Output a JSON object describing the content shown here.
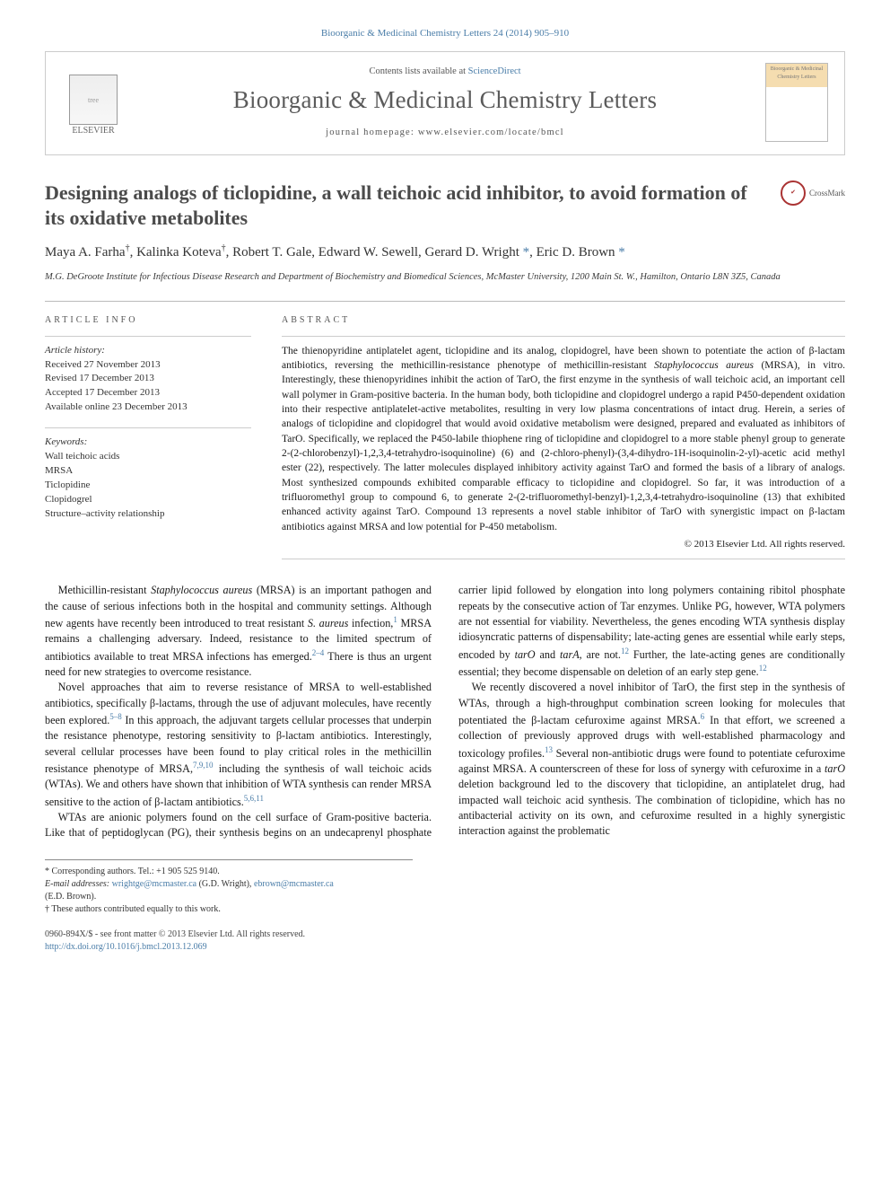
{
  "citation": "Bioorganic & Medicinal Chemistry Letters 24 (2014) 905–910",
  "header": {
    "contents_prefix": "Contents lists available at ",
    "contents_link": "ScienceDirect",
    "journal": "Bioorganic & Medicinal Chemistry Letters",
    "homepage_prefix": "journal homepage: ",
    "homepage_url": "www.elsevier.com/locate/bmcl",
    "publisher_label": "ELSEVIER",
    "cover_label": "Bioorganic & Medicinal Chemistry Letters"
  },
  "crossmark_label": "CrossMark",
  "title": "Designing analogs of ticlopidine, a wall teichoic acid inhibitor, to avoid formation of its oxidative metabolites",
  "authors_html": "Maya A. Farha<sup>†</sup>, Kalinka Koteva<sup>†</sup>, Robert T. Gale, Edward W. Sewell, Gerard D. Wright<sup>*</sup>, Eric D. Brown<sup>*</sup>",
  "affiliation": "M.G. DeGroote Institute for Infectious Disease Research and Department of Biochemistry and Biomedical Sciences, McMaster University, 1200 Main St. W., Hamilton, Ontario L8N 3Z5, Canada",
  "info": {
    "heading": "ARTICLE INFO",
    "history_label": "Article history:",
    "received": "Received 27 November 2013",
    "revised": "Revised 17 December 2013",
    "accepted": "Accepted 17 December 2013",
    "online": "Available online 23 December 2013",
    "keywords_label": "Keywords:",
    "keywords": [
      "Wall teichoic acids",
      "MRSA",
      "Ticlopidine",
      "Clopidogrel",
      "Structure–activity relationship"
    ]
  },
  "abstract": {
    "heading": "ABSTRACT",
    "text": "The thienopyridine antiplatelet agent, ticlopidine and its analog, clopidogrel, have been shown to potentiate the action of β-lactam antibiotics, reversing the methicillin-resistance phenotype of methicillin-resistant Staphylococcus aureus (MRSA), in vitro. Interestingly, these thienopyridines inhibit the action of TarO, the first enzyme in the synthesis of wall teichoic acid, an important cell wall polymer in Gram-positive bacteria. In the human body, both ticlopidine and clopidogrel undergo a rapid P450-dependent oxidation into their respective antiplatelet-active metabolites, resulting in very low plasma concentrations of intact drug. Herein, a series of analogs of ticlopidine and clopidogrel that would avoid oxidative metabolism were designed, prepared and evaluated as inhibitors of TarO. Specifically, we replaced the P450-labile thiophene ring of ticlopidine and clopidogrel to a more stable phenyl group to generate 2-(2-chlorobenzyl)-1,2,3,4-tetrahydro-isoquinoline) (6) and (2-chloro-phenyl)-(3,4-dihydro-1H-isoquinolin-2-yl)-acetic acid methyl ester (22), respectively. The latter molecules displayed inhibitory activity against TarO and formed the basis of a library of analogs. Most synthesized compounds exhibited comparable efficacy to ticlopidine and clopidogrel. So far, it was introduction of a trifluoromethyl group to compound 6, to generate 2-(2-trifluoromethyl-benzyl)-1,2,3,4-tetrahydro-isoquinoline (13) that exhibited enhanced activity against TarO. Compound 13 represents a novel stable inhibitor of TarO with synergistic impact on β-lactam antibiotics against MRSA and low potential for P-450 metabolism.",
    "copyright": "© 2013 Elsevier Ltd. All rights reserved."
  },
  "body": {
    "p1": "Methicillin-resistant Staphylococcus aureus (MRSA) is an important pathogen and the cause of serious infections both in the hospital and community settings. Although new agents have recently been introduced to treat resistant S. aureus infection,¹ MRSA remains a challenging adversary. Indeed, resistance to the limited spectrum of antibiotics available to treat MRSA infections has emerged.²⁻⁴ There is thus an urgent need for new strategies to overcome resistance.",
    "p2": "Novel approaches that aim to reverse resistance of MRSA to well-established antibiotics, specifically β-lactams, through the use of adjuvant molecules, have recently been explored.⁵⁻⁸ In this approach, the adjuvant targets cellular processes that underpin the resistance phenotype, restoring sensitivity to β-lactam antibiotics. Interestingly, several cellular processes have been found to play critical roles in the methicillin resistance phenotype of MRSA,⁷,⁹,¹⁰ including the synthesis of wall teichoic acids (WTAs). We and others have shown that inhibition of WTA synthesis can render MRSA sensitive to the action of β-lactam antibiotics.⁵,⁶,¹¹",
    "p3": "WTAs are anionic polymers found on the cell surface of Gram-positive bacteria. Like that of peptidoglycan (PG), their synthesis begins on an undecaprenyl phosphate carrier lipid followed by elongation into long polymers containing ribitol phosphate repeats by the consecutive action of Tar enzymes. Unlike PG, however, WTA polymers are not essential for viability. Nevertheless, the genes encoding WTA synthesis display idiosyncratic patterns of dispensability; late-acting genes are essential while early steps, encoded by tarO and tarA, are not.¹² Further, the late-acting genes are conditionally essential; they become dispensable on deletion of an early step gene.¹²",
    "p4": "We recently discovered a novel inhibitor of TarO, the first step in the synthesis of WTAs, through a high-throughput combination screen looking for molecules that potentiated the β-lactam cefuroxime against MRSA.⁶ In that effort, we screened a collection of previously approved drugs with well-established pharmacology and toxicology profiles.¹³ Several non-antibiotic drugs were found to potentiate cefuroxime against MRSA. A counterscreen of these for loss of synergy with cefuroxime in a tarO deletion background led to the discovery that ticlopidine, an antiplatelet drug, had impacted wall teichoic acid synthesis. The combination of ticlopidine, which has no antibacterial activity on its own, and cefuroxime resulted in a highly synergistic interaction against the problematic"
  },
  "footnotes": {
    "corr_label": "* Corresponding authors. Tel.: +1 905 525 9140.",
    "email_label": "E-mail addresses:",
    "email1": "wrightge@mcmaster.ca",
    "email1_who": "(G.D. Wright),",
    "email2": "ebrown@mcmaster.ca",
    "email2_who": "(E.D. Brown).",
    "equal": "† These authors contributed equally to this work."
  },
  "bottom": {
    "line1": "0960-894X/$ - see front matter © 2013 Elsevier Ltd. All rights reserved.",
    "doi_label": "http://dx.doi.org/",
    "doi": "10.1016/j.bmcl.2013.12.069"
  }
}
